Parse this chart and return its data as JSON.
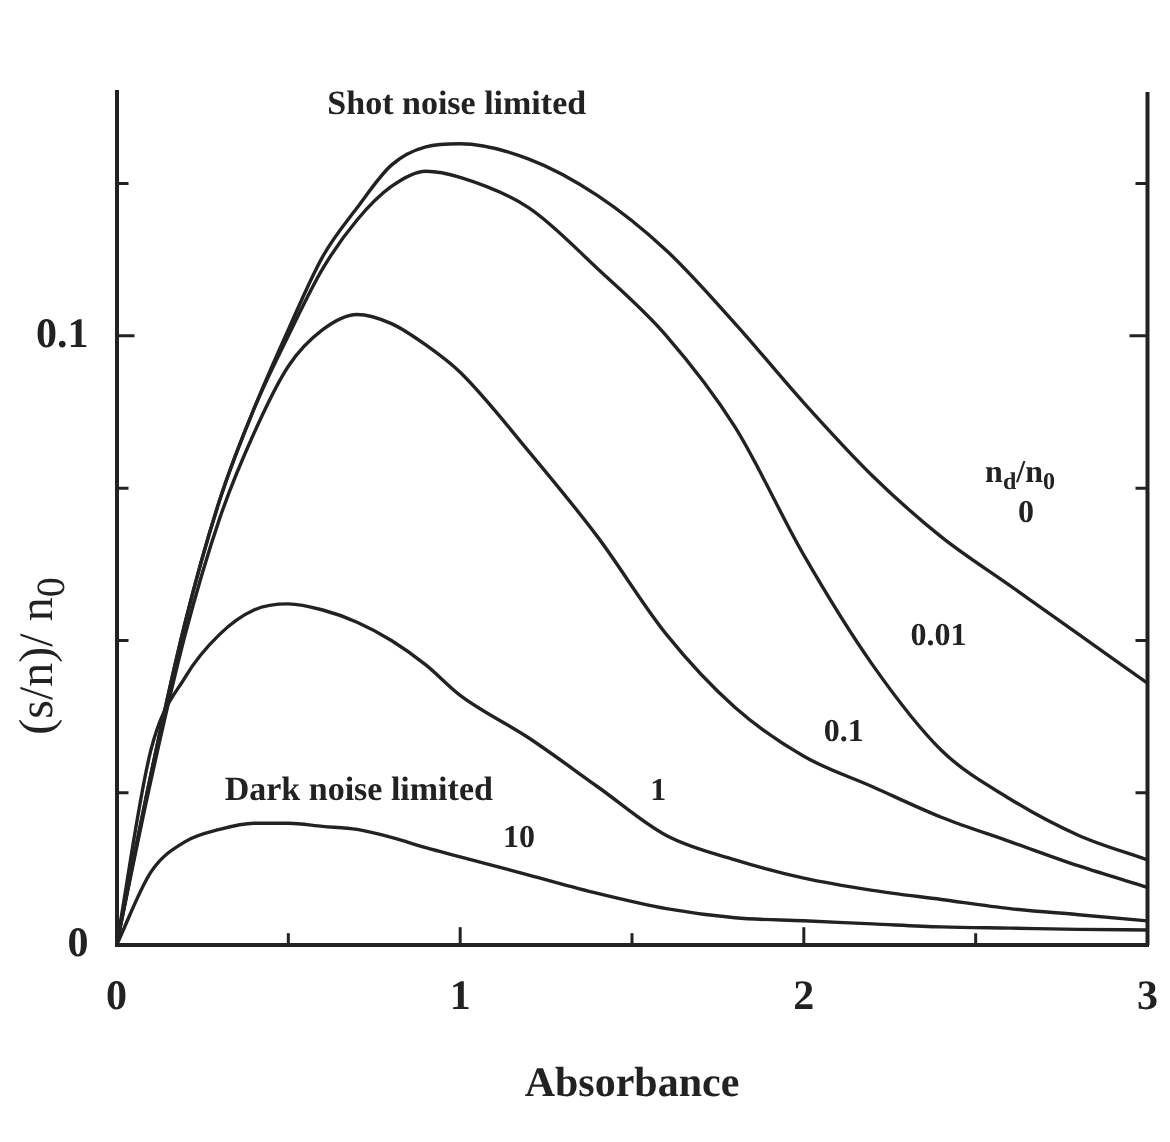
{
  "chart_data": {
    "type": "line",
    "xlabel": "Absorbance",
    "ylabel": "(s/n)/ n$_{0}$",
    "legend_title": "n$_{d}$/n$_{0}$",
    "x": [
      0,
      0.1,
      0.2,
      0.3,
      0.4,
      0.5,
      0.6,
      0.7,
      0.8,
      0.9,
      1.0,
      1.2,
      1.4,
      1.6,
      1.8,
      2.0,
      2.2,
      2.4,
      2.6,
      2.8,
      3.0
    ],
    "series": [
      {
        "name": "0",
        "color": "#222222",
        "values": [
          0,
          0.028,
          0.053,
          0.073,
          0.088,
          0.101,
          0.113,
          0.121,
          0.128,
          0.131,
          0.1315,
          0.129,
          0.123,
          0.114,
          0.102,
          0.089,
          0.077,
          0.067,
          0.059,
          0.051,
          0.043
        ]
      },
      {
        "name": "0.01",
        "color": "#222222",
        "values": [
          0,
          0.028,
          0.053,
          0.073,
          0.088,
          0.1,
          0.111,
          0.119,
          0.1245,
          0.127,
          0.126,
          0.121,
          0.111,
          0.1,
          0.085,
          0.064,
          0.046,
          0.032,
          0.024,
          0.018,
          0.014
        ]
      },
      {
        "name": "0.1",
        "color": "#222222",
        "values": [
          0,
          0.027,
          0.051,
          0.07,
          0.084,
          0.095,
          0.101,
          0.1035,
          0.102,
          0.0985,
          0.094,
          0.081,
          0.067,
          0.051,
          0.039,
          0.031,
          0.026,
          0.021,
          0.017,
          0.013,
          0.0095
        ]
      },
      {
        "name": "1",
        "color": "#222222",
        "values": [
          0,
          0.032,
          0.044,
          0.051,
          0.055,
          0.056,
          0.055,
          0.053,
          0.05,
          0.046,
          0.041,
          0.034,
          0.026,
          0.018,
          0.014,
          0.011,
          0.009,
          0.0075,
          0.006,
          0.005,
          0.004
        ]
      },
      {
        "name": "10",
        "color": "#222222",
        "values": [
          0,
          0.012,
          0.017,
          0.019,
          0.02,
          0.02,
          0.0195,
          0.019,
          0.0177,
          0.016,
          0.0145,
          0.0115,
          0.0085,
          0.006,
          0.0045,
          0.004,
          0.0035,
          0.003,
          0.0028,
          0.0026,
          0.0025
        ]
      }
    ],
    "xlim": [
      0,
      3
    ],
    "xticks": [
      0,
      {
        "value": 0.5,
        "label": null
      },
      1,
      {
        "value": 1.5,
        "label": null
      },
      2,
      {
        "value": 2.5,
        "label": null
      },
      3
    ],
    "ylim": [
      0,
      0.14
    ],
    "yticks": [
      0,
      {
        "value": 0.025,
        "label": null
      },
      {
        "value": 0.05,
        "label": null
      },
      {
        "value": 0.075,
        "label": null
      },
      0.1,
      {
        "value": 0.125,
        "label": null
      }
    ],
    "marker": "none",
    "line_style": "solid",
    "annotations": [
      "Shot noise limited",
      "Dark noise limited"
    ]
  }
}
